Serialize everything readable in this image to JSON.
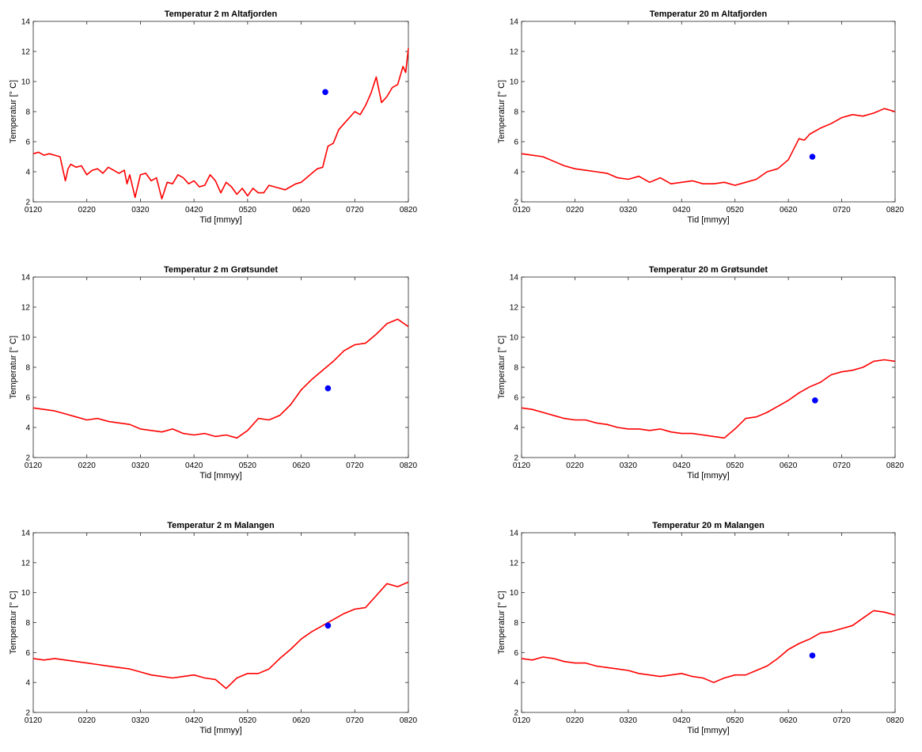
{
  "figure": {
    "background": "#ffffff",
    "line_color": "#ff0000",
    "marker_color": "#0000ff"
  },
  "chart_data": [
    {
      "type": "line",
      "title": "Temperatur 2 m Altafjorden",
      "xlabel": "Tid [mmyy]",
      "ylabel": "Temperatur [° C]",
      "xticks": [
        "0120",
        "0220",
        "0320",
        "0420",
        "0520",
        "0620",
        "0720",
        "0820"
      ],
      "xlim": [
        0,
        7
      ],
      "ylim": [
        2,
        14
      ],
      "yticks": [
        2,
        4,
        6,
        8,
        10,
        12,
        14
      ],
      "series": [
        {
          "x": [
            0,
            0.1,
            0.2,
            0.3,
            0.4,
            0.5,
            0.6,
            0.65,
            0.7,
            0.8,
            0.9,
            1.0,
            1.1,
            1.2,
            1.3,
            1.4,
            1.5,
            1.6,
            1.7,
            1.75,
            1.8,
            1.9,
            2.0,
            2.1,
            2.2,
            2.3,
            2.4,
            2.5,
            2.6,
            2.7,
            2.8,
            2.9,
            3.0,
            3.1,
            3.2,
            3.3,
            3.4,
            3.5,
            3.6,
            3.7,
            3.8,
            3.9,
            4.0,
            4.1,
            4.2,
            4.3,
            4.4,
            4.5,
            4.6,
            4.7,
            4.8,
            4.9,
            5.0,
            5.1,
            5.2,
            5.3,
            5.4,
            5.5,
            5.6,
            5.7,
            5.8,
            5.9,
            6.0,
            6.1,
            6.2,
            6.3,
            6.4,
            6.5,
            6.6,
            6.7,
            6.8,
            6.9,
            6.95,
            7.0
          ],
          "y": [
            5.2,
            5.3,
            5.1,
            5.2,
            5.1,
            5.0,
            3.4,
            4.2,
            4.5,
            4.3,
            4.4,
            3.8,
            4.1,
            4.2,
            3.9,
            4.3,
            4.1,
            3.9,
            4.1,
            3.2,
            3.8,
            2.3,
            3.8,
            3.9,
            3.4,
            3.6,
            2.2,
            3.3,
            3.2,
            3.8,
            3.6,
            3.2,
            3.4,
            3.0,
            3.1,
            3.8,
            3.4,
            2.6,
            3.3,
            3.0,
            2.5,
            2.9,
            2.4,
            2.9,
            2.6,
            2.6,
            3.1,
            3.0,
            2.9,
            2.8,
            3.0,
            3.2,
            3.3,
            3.6,
            3.9,
            4.2,
            4.3,
            5.7,
            5.9,
            6.8,
            7.2,
            7.6,
            8.0,
            7.8,
            8.4,
            9.2,
            10.3,
            8.6,
            9.0,
            9.6,
            9.8,
            11.0,
            10.6,
            12.2
          ]
        }
      ],
      "markers": [
        {
          "x": 5.45,
          "y": 9.3
        }
      ]
    },
    {
      "type": "line",
      "title": "Temperatur 20 m Altafjorden",
      "xlabel": "Tid [mmyy]",
      "ylabel": "Temperatur [° C]",
      "xticks": [
        "0120",
        "0220",
        "0320",
        "0420",
        "0520",
        "0620",
        "0720",
        "0820"
      ],
      "xlim": [
        0,
        7
      ],
      "ylim": [
        2,
        14
      ],
      "yticks": [
        2,
        4,
        6,
        8,
        10,
        12,
        14
      ],
      "series": [
        {
          "x": [
            0,
            0.2,
            0.4,
            0.6,
            0.8,
            1.0,
            1.2,
            1.4,
            1.6,
            1.8,
            2.0,
            2.2,
            2.4,
            2.6,
            2.8,
            3.0,
            3.2,
            3.4,
            3.6,
            3.8,
            4.0,
            4.2,
            4.4,
            4.6,
            4.8,
            5.0,
            5.2,
            5.3,
            5.4,
            5.6,
            5.8,
            6.0,
            6.2,
            6.4,
            6.6,
            6.8,
            7.0
          ],
          "y": [
            5.2,
            5.1,
            5.0,
            4.7,
            4.4,
            4.2,
            4.1,
            4.0,
            3.9,
            3.6,
            3.5,
            3.7,
            3.3,
            3.6,
            3.2,
            3.3,
            3.4,
            3.2,
            3.2,
            3.3,
            3.1,
            3.3,
            3.5,
            4.0,
            4.2,
            4.8,
            6.2,
            6.1,
            6.5,
            6.9,
            7.2,
            7.6,
            7.8,
            7.7,
            7.9,
            8.2,
            8.0
          ]
        }
      ],
      "markers": [
        {
          "x": 5.45,
          "y": 5.0
        }
      ]
    },
    {
      "type": "line",
      "title": "Temperatur 2 m Grøtsundet",
      "xlabel": "Tid [mmyy]",
      "ylabel": "Temperatur [° C]",
      "xticks": [
        "0120",
        "0220",
        "0320",
        "0420",
        "0520",
        "0620",
        "0720",
        "0820"
      ],
      "xlim": [
        0,
        7
      ],
      "ylim": [
        2,
        14
      ],
      "yticks": [
        2,
        4,
        6,
        8,
        10,
        12,
        14
      ],
      "series": [
        {
          "x": [
            0,
            0.2,
            0.4,
            0.6,
            0.8,
            1.0,
            1.2,
            1.4,
            1.6,
            1.8,
            2.0,
            2.2,
            2.4,
            2.6,
            2.8,
            3.0,
            3.2,
            3.4,
            3.6,
            3.8,
            4.0,
            4.2,
            4.4,
            4.6,
            4.8,
            5.0,
            5.2,
            5.4,
            5.6,
            5.8,
            6.0,
            6.2,
            6.4,
            6.6,
            6.8,
            7.0
          ],
          "y": [
            5.3,
            5.2,
            5.1,
            4.9,
            4.7,
            4.5,
            4.6,
            4.4,
            4.3,
            4.2,
            3.9,
            3.8,
            3.7,
            3.9,
            3.6,
            3.5,
            3.6,
            3.4,
            3.5,
            3.3,
            3.8,
            4.6,
            4.5,
            4.8,
            5.5,
            6.5,
            7.2,
            7.8,
            8.4,
            9.1,
            9.5,
            9.6,
            10.2,
            10.9,
            11.2,
            10.7
          ]
        }
      ],
      "markers": [
        {
          "x": 5.5,
          "y": 6.6
        }
      ]
    },
    {
      "type": "line",
      "title": "Temperatur 20 m Grøtsundet",
      "xlabel": "Tid [mmyy]",
      "ylabel": "Temperatur [° C]",
      "xticks": [
        "0120",
        "0220",
        "0320",
        "0420",
        "0520",
        "0620",
        "0720",
        "0820"
      ],
      "xlim": [
        0,
        7
      ],
      "ylim": [
        2,
        14
      ],
      "yticks": [
        2,
        4,
        6,
        8,
        10,
        12,
        14
      ],
      "series": [
        {
          "x": [
            0,
            0.2,
            0.4,
            0.6,
            0.8,
            1.0,
            1.2,
            1.4,
            1.6,
            1.8,
            2.0,
            2.2,
            2.4,
            2.6,
            2.8,
            3.0,
            3.2,
            3.4,
            3.6,
            3.8,
            4.0,
            4.2,
            4.4,
            4.6,
            4.8,
            5.0,
            5.2,
            5.4,
            5.6,
            5.8,
            6.0,
            6.2,
            6.4,
            6.6,
            6.8,
            7.0
          ],
          "y": [
            5.3,
            5.2,
            5.0,
            4.8,
            4.6,
            4.5,
            4.5,
            4.3,
            4.2,
            4.0,
            3.9,
            3.9,
            3.8,
            3.9,
            3.7,
            3.6,
            3.6,
            3.5,
            3.4,
            3.3,
            3.9,
            4.6,
            4.7,
            5.0,
            5.4,
            5.8,
            6.3,
            6.7,
            7.0,
            7.5,
            7.7,
            7.8,
            8.0,
            8.4,
            8.5,
            8.4
          ]
        }
      ],
      "markers": [
        {
          "x": 5.5,
          "y": 5.8
        }
      ]
    },
    {
      "type": "line",
      "title": "Temperatur 2 m Malangen",
      "xlabel": "Tid [mmyy]",
      "ylabel": "Temperatur [° C]",
      "xticks": [
        "0120",
        "0220",
        "0320",
        "0420",
        "0520",
        "0620",
        "0720",
        "0820"
      ],
      "xlim": [
        0,
        7
      ],
      "ylim": [
        2,
        14
      ],
      "yticks": [
        2,
        4,
        6,
        8,
        10,
        12,
        14
      ],
      "series": [
        {
          "x": [
            0,
            0.2,
            0.4,
            0.6,
            0.8,
            1.0,
            1.2,
            1.4,
            1.6,
            1.8,
            2.0,
            2.2,
            2.4,
            2.6,
            2.8,
            3.0,
            3.2,
            3.4,
            3.6,
            3.8,
            4.0,
            4.2,
            4.4,
            4.6,
            4.8,
            5.0,
            5.2,
            5.4,
            5.6,
            5.8,
            6.0,
            6.2,
            6.4,
            6.6,
            6.8,
            7.0
          ],
          "y": [
            5.6,
            5.5,
            5.6,
            5.5,
            5.4,
            5.3,
            5.2,
            5.1,
            5.0,
            4.9,
            4.7,
            4.5,
            4.4,
            4.3,
            4.4,
            4.5,
            4.3,
            4.2,
            3.6,
            4.3,
            4.6,
            4.6,
            4.9,
            5.6,
            6.2,
            6.9,
            7.4,
            7.8,
            8.2,
            8.6,
            8.9,
            9.0,
            9.8,
            10.6,
            10.4,
            10.7
          ]
        }
      ],
      "markers": [
        {
          "x": 5.5,
          "y": 7.8
        }
      ]
    },
    {
      "type": "line",
      "title": "Temperatur 20 m Malangen",
      "xlabel": "Tid [mmyy]",
      "ylabel": "Temperatur [° C]",
      "xticks": [
        "0120",
        "0220",
        "0320",
        "0420",
        "0520",
        "0620",
        "0720",
        "0820"
      ],
      "xlim": [
        0,
        7
      ],
      "ylim": [
        2,
        14
      ],
      "yticks": [
        2,
        4,
        6,
        8,
        10,
        12,
        14
      ],
      "series": [
        {
          "x": [
            0,
            0.2,
            0.4,
            0.6,
            0.8,
            1.0,
            1.2,
            1.4,
            1.6,
            1.8,
            2.0,
            2.2,
            2.4,
            2.6,
            2.8,
            3.0,
            3.2,
            3.4,
            3.6,
            3.8,
            4.0,
            4.2,
            4.4,
            4.6,
            4.8,
            5.0,
            5.2,
            5.4,
            5.6,
            5.8,
            6.0,
            6.2,
            6.4,
            6.6,
            6.8,
            7.0
          ],
          "y": [
            5.6,
            5.5,
            5.7,
            5.6,
            5.4,
            5.3,
            5.3,
            5.1,
            5.0,
            4.9,
            4.8,
            4.6,
            4.5,
            4.4,
            4.5,
            4.6,
            4.4,
            4.3,
            4.0,
            4.3,
            4.5,
            4.5,
            4.8,
            5.1,
            5.6,
            6.2,
            6.6,
            6.9,
            7.3,
            7.4,
            7.6,
            7.8,
            8.3,
            8.8,
            8.7,
            8.5
          ]
        }
      ],
      "markers": [
        {
          "x": 5.45,
          "y": 5.8
        }
      ]
    }
  ]
}
